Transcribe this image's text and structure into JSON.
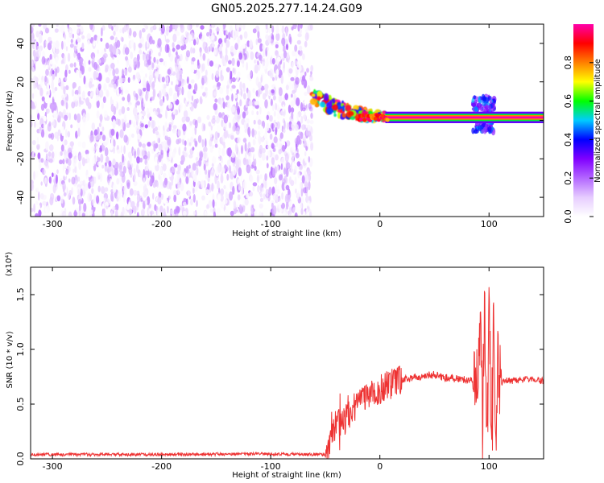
{
  "figure_title": "GN05.2025.277.14.24.G09",
  "chart_data": [
    {
      "type": "heatmap",
      "title": "GN05.2025.277.14.24.G09",
      "xlabel": "Height of straight line (km)",
      "ylabel": "Frequency (Hz)",
      "xlim": [
        -320,
        150
      ],
      "ylim": [
        -50,
        50
      ],
      "xticks": [
        -300,
        -200,
        -100,
        0,
        100
      ],
      "xtick_labels": [
        "-300",
        "-200",
        "-100",
        "0",
        "100"
      ],
      "yticks": [
        -40,
        -20,
        0,
        20,
        40
      ],
      "ytick_labels": [
        "-40",
        "-20",
        "0",
        "20",
        "40"
      ],
      "colorbar": {
        "label": "Normalized spectral amplitude",
        "range": [
          0,
          1
        ],
        "ticks": [
          0,
          0.2,
          0.4,
          0.6,
          0.8
        ],
        "tick_labels": [
          "0.0",
          "0.2",
          "0.4",
          "0.6",
          "0.8"
        ],
        "colormap": [
          "#ffffff",
          "#e6ccff",
          "#b366ff",
          "#8000ff",
          "#0000ff",
          "#00ccff",
          "#00ff00",
          "#ffff00",
          "#ff8000",
          "#ff0000",
          "#ff00aa"
        ]
      },
      "regions": [
        {
          "name": "noise",
          "x_range": [
            -320,
            -62
          ],
          "freq_range": [
            -50,
            50
          ],
          "amplitude": [
            0.0,
            0.2
          ]
        },
        {
          "name": "signal-descent",
          "x_range": [
            -62,
            5
          ],
          "freq_start": 15,
          "freq_end": 2,
          "amplitude": [
            0.3,
            1.0
          ]
        },
        {
          "name": "signal-flat",
          "x_range": [
            5,
            150
          ],
          "freq": 1.5,
          "amplitude": 1.0
        },
        {
          "name": "disturbance",
          "x_range": [
            85,
            105
          ],
          "freq_range": [
            -6,
            12
          ],
          "amplitude": [
            0.2,
            0.5
          ]
        }
      ]
    },
    {
      "type": "line",
      "xlabel": "Height of straight line (km)",
      "ylabel": "SNR (10 * v/v)",
      "y_multiplier": "(x10⁴)",
      "xlim": [
        -320,
        150
      ],
      "ylim": [
        0,
        17500
      ],
      "xticks": [
        -300,
        -200,
        -100,
        0,
        100
      ],
      "xtick_labels": [
        "-300",
        "-200",
        "-100",
        "0",
        "100"
      ],
      "yticks": [
        0,
        5000,
        10000,
        15000
      ],
      "ytick_labels": [
        "0.0",
        "0.5",
        "1.0",
        "1.5"
      ],
      "line_color": "#ee3333",
      "series": [
        {
          "x": [
            -320,
            -200,
            -100,
            -50,
            -45,
            -40,
            -35,
            -30,
            -25,
            -20,
            -15,
            -10,
            -5,
            0,
            10,
            20,
            30,
            40,
            50,
            60,
            70,
            80,
            85,
            88,
            90,
            92,
            94,
            96,
            98,
            100,
            102,
            104,
            106,
            108,
            110,
            115,
            120,
            130,
            140,
            150
          ],
          "y": [
            400,
            400,
            450,
            400,
            1500,
            3500,
            3000,
            4000,
            4500,
            5000,
            5200,
            5600,
            6000,
            6300,
            6800,
            7200,
            7400,
            7600,
            7700,
            7400,
            7300,
            7200,
            7300,
            7400,
            7500,
            12000,
            3000,
            15000,
            1500,
            16000,
            2000,
            13000,
            1500,
            10000,
            7000,
            7200,
            7100,
            7200,
            7300,
            7100
          ]
        }
      ]
    }
  ]
}
